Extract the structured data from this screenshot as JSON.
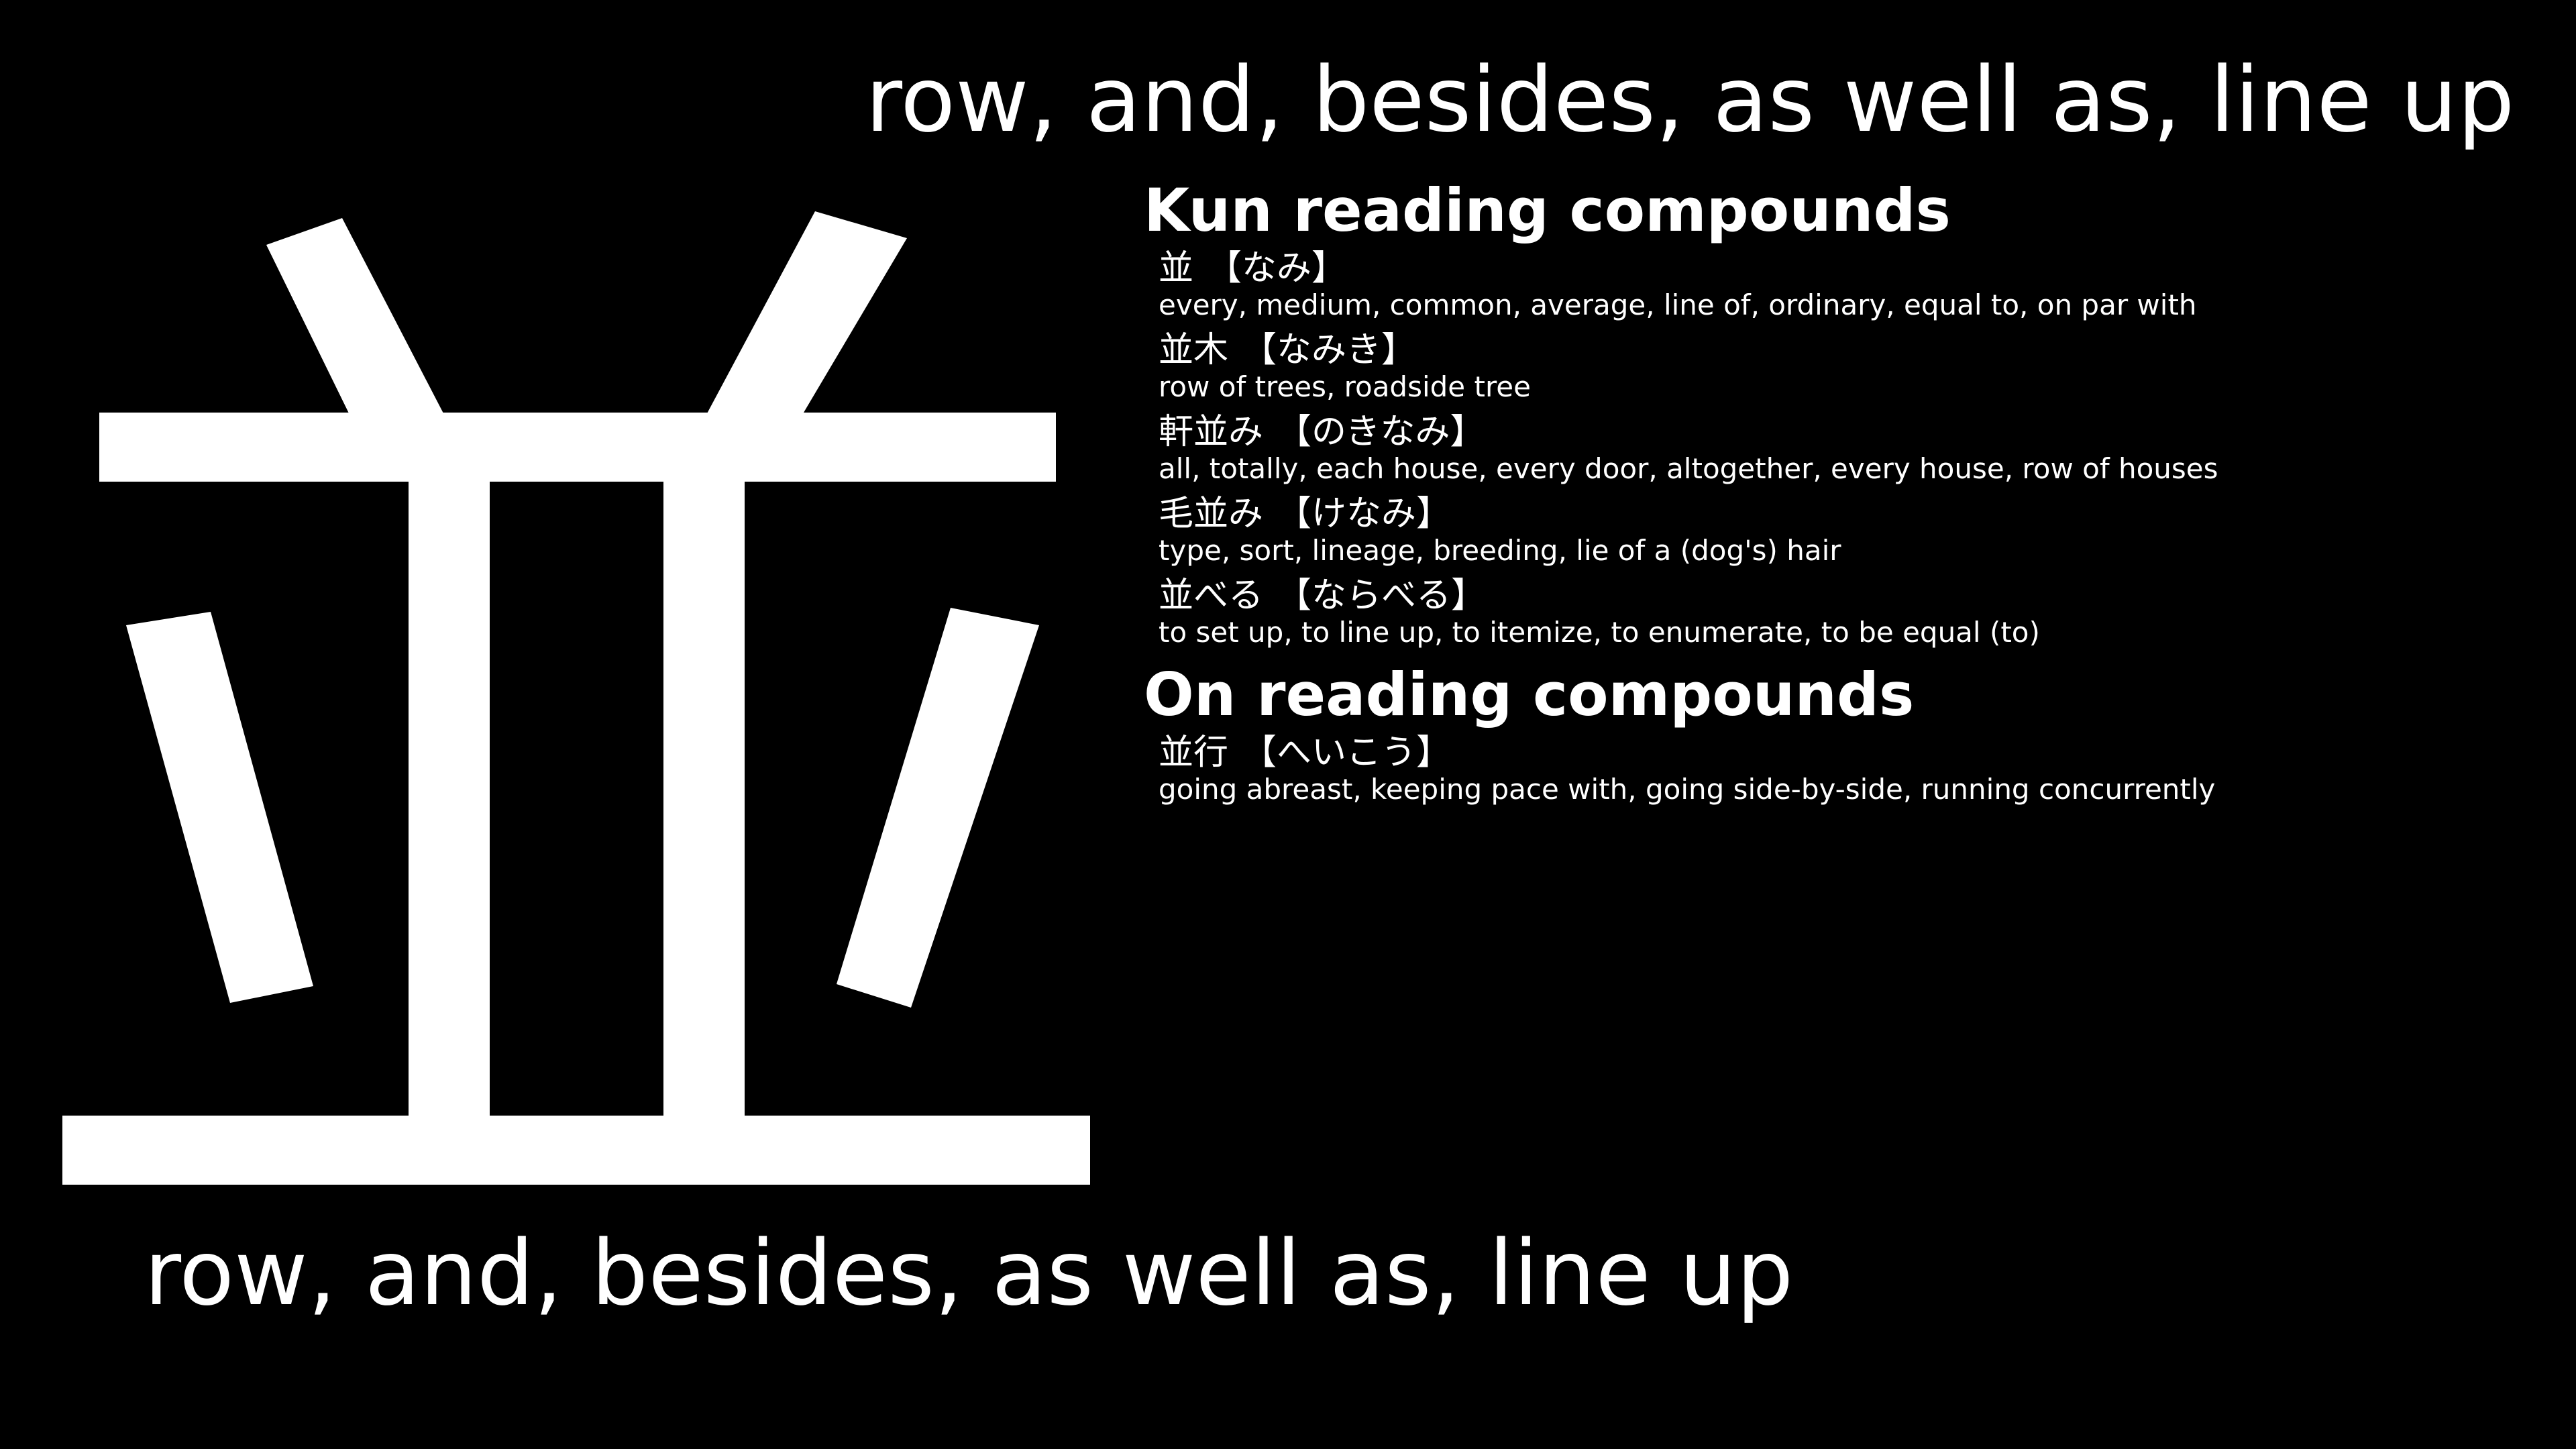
{
  "kanji": "並",
  "meaning_top": "row, and, besides, as well as, line up",
  "meaning_bottom": "row, and, besides, as well as, line up",
  "kun_section": {
    "heading": "Kun reading compounds",
    "entries": [
      {
        "word": "並",
        "reading": "【なみ】",
        "meaning": "every, medium, common, average, line of, ordinary, equal to, on par with"
      },
      {
        "word": "並木",
        "reading": "【なみき】",
        "meaning": "row of trees, roadside tree"
      },
      {
        "word": "軒並み",
        "reading": "【のきなみ】",
        "meaning": "all, totally, each house, every door, altogether, every house, row of houses"
      },
      {
        "word": "毛並み",
        "reading": "【けなみ】",
        "meaning": "type, sort, lineage, breeding, lie of a (dog's) hair"
      },
      {
        "word": "並べる",
        "reading": "【ならべる】",
        "meaning": "to set up, to line up, to itemize, to enumerate, to be equal (to)"
      }
    ]
  },
  "on_section": {
    "heading": "On reading compounds",
    "entries": [
      {
        "word": "並行",
        "reading": "【へいこう】",
        "meaning": "going abreast, keeping pace with, going side-by-side, running concurrently"
      }
    ]
  },
  "colors": {
    "background": "#000000",
    "foreground": "#ffffff"
  }
}
